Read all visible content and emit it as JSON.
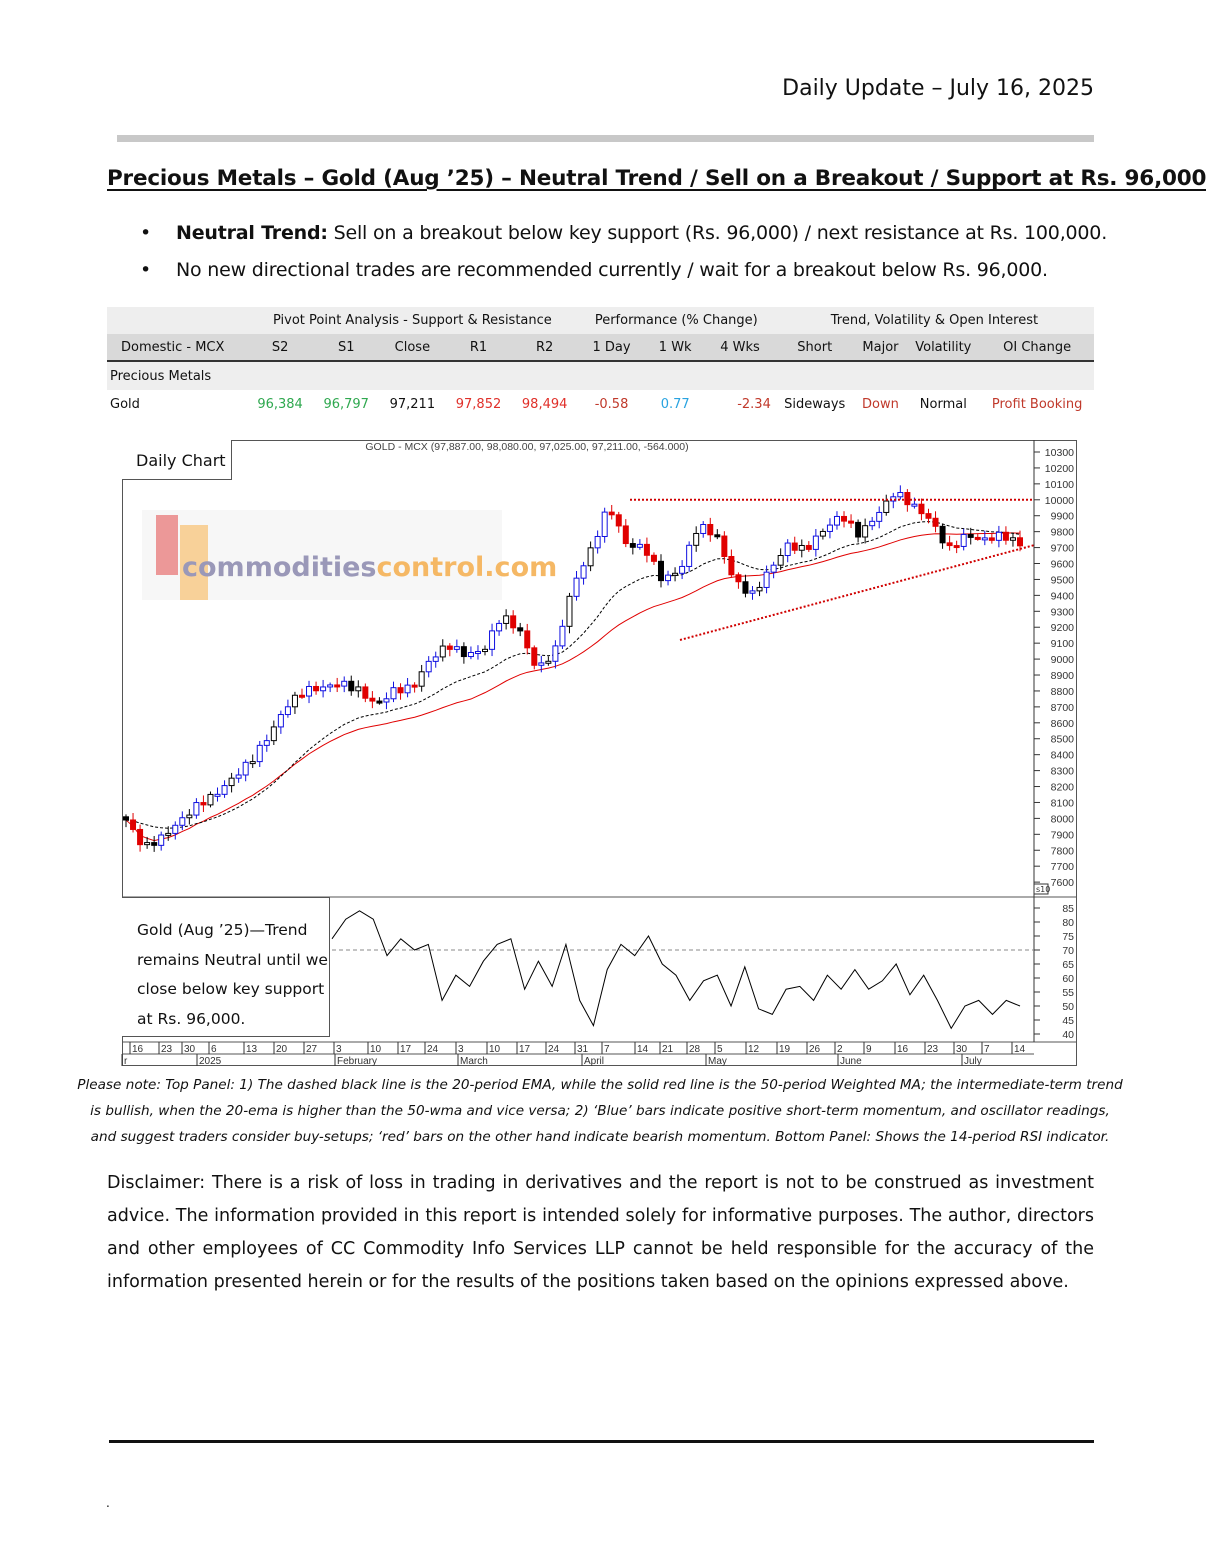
{
  "header": {
    "title": "Daily Update – July 16, 2025"
  },
  "section_title": "Precious Metals – Gold (Aug ’25) – Neutral Trend / Sell on a Breakout / Support at Rs. 96,000",
  "bullets": [
    {
      "bold": "Neutral Trend:",
      "text": " Sell on a breakout below key support (Rs. 96,000) / next resistance at Rs. 100,000."
    },
    {
      "bold": "",
      "text": "No new directional trades are recommended currently / wait for a breakout below Rs. 96,000."
    }
  ],
  "table": {
    "group_headers": [
      "Pivot Point Analysis - Support & Resistance",
      "Performance (% Change)",
      "Trend, Volatility & Open Interest"
    ],
    "columns": [
      "Domestic - MCX",
      "S2",
      "S1",
      "Close",
      "R1",
      "R2",
      "1 Day",
      "1 Wk",
      "4 Wks",
      "Short",
      "Major",
      "Volatility",
      "OI Change"
    ],
    "section": "Precious Metals",
    "rows": [
      {
        "name": "Gold",
        "s2": "96,384",
        "s1": "96,797",
        "close": "97,211",
        "r1": "97,852",
        "r2": "98,494",
        "d1": "-0.58",
        "w1": "0.77",
        "w4": "-2.34",
        "short": "Sideways",
        "major": "Down",
        "volatility": "Normal",
        "oi": "Profit Booking"
      }
    ],
    "colors": {
      "support": "#2fa84f",
      "resistance": "#e0302a",
      "negative": "#c0392b",
      "positive": "#29a3e0"
    }
  },
  "chart": {
    "label": "Daily Chart",
    "title": "GOLD - MCX (97,887.00, 98,080.00, 97,025.00, 97,211.00, -564.000)",
    "watermark": "commoditiescontrol.com",
    "rsi_note": "Gold (Aug ’25)—Trend remains Neutral until we close below key support at Rs. 96,000.",
    "rsi_badge": "s10",
    "colors": {
      "up": "#1010e0",
      "down": "#e00000",
      "ema": "#000000",
      "wma": "#e00000"
    }
  },
  "chart_data": {
    "type": "candlestick",
    "title": "GOLD - MCX (97,887.00, 98,080.00, 97,025.00, 97,211.00, -564.000)",
    "price_ticks": [
      "10300",
      "10200",
      "10100",
      "10000",
      "9900",
      "9800",
      "9700",
      "9600",
      "9500",
      "9400",
      "9300",
      "9200",
      "9100",
      "9000",
      "8900",
      "8800",
      "8700",
      "8600",
      "8500",
      "8400",
      "8300",
      "8200",
      "8100",
      "8000",
      "7900",
      "7800",
      "7700",
      "7600"
    ],
    "price_range": [
      7600,
      10300
    ],
    "approx_close_path": [
      7990,
      7815,
      7880,
      7980,
      8085,
      8150,
      8255,
      8365,
      8520,
      8710,
      8805,
      8820,
      8850,
      8805,
      8710,
      8805,
      8820,
      8995,
      9090,
      9025,
      9055,
      9275,
      9180,
      8930,
      9055,
      9465,
      9685,
      9965,
      9715,
      9700,
      9495,
      9560,
      9840,
      9780,
      9495,
      9400,
      9560,
      9715,
      9685,
      9810,
      9905,
      9780,
      9905,
      10050,
      9965,
      9875,
      9685,
      9780,
      9750,
      9780,
      9721
    ],
    "resistance_level": 10000,
    "support_trendline": [
      9120,
      9715
    ],
    "indicators": [
      "20-period EMA (dashed black)",
      "50-period WMA (solid red)"
    ],
    "rsi": {
      "ticks": [
        "85",
        "80",
        "75",
        "70",
        "65",
        "60",
        "55",
        "50",
        "45",
        "40"
      ],
      "range": [
        40,
        85
      ],
      "reference": 70,
      "values": [
        74,
        81,
        84,
        81,
        68,
        74,
        70,
        72,
        52,
        61,
        57,
        66,
        72,
        74,
        56,
        66,
        57,
        72,
        52,
        43,
        63,
        72,
        68,
        75,
        65,
        61,
        52,
        59,
        61,
        50,
        64,
        49,
        47,
        56,
        57,
        52,
        61,
        56,
        63,
        56,
        59,
        65,
        54,
        61,
        52,
        42,
        50,
        52,
        47,
        52,
        50
      ]
    },
    "x_day_ticks": [
      "16",
      "23",
      "30",
      "6",
      "13",
      "20",
      "27",
      "3",
      "10",
      "17",
      "24",
      "3",
      "10",
      "17",
      "24",
      "31",
      "7",
      "14",
      "21",
      "28",
      "5",
      "12",
      "19",
      "26",
      "2",
      "9",
      "16",
      "23",
      "30",
      "7",
      "14"
    ],
    "x_month_ticks": [
      "r",
      "2025",
      "February",
      "March",
      "April",
      "May",
      "June",
      "July"
    ]
  },
  "caption": [
    "Please note: Top Panel: 1) The dashed black line is the 20-period EMA, while the solid red line is the 50-period Weighted MA; the intermediate-term trend",
    "is bullish, when the 20-ema is higher than the 50-wma and vice versa; 2)   ‘Blue’   bars indicate positive short-term momentum, and oscillator readings,",
    "and suggest traders consider buy-setups;   ‘red’   bars on the other hand indicate bearish momentum. Bottom Panel: Shows the 14-period RSI indicator."
  ],
  "disclaimer": "Disclaimer: There is a risk of loss in trading in derivatives and the report is not to be construed as investment advice. The information provided in this report is intended solely for informative purposes. The author, directors and other employees of CC Commodity Info Services LLP cannot be held responsible for the accuracy of the information presented herein or for the results of the positions taken based on the opinions expressed above.",
  "footer_mark": "."
}
